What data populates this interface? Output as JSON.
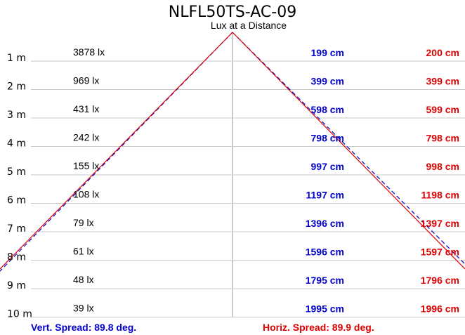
{
  "title": "NLFL50TS-AC-09",
  "subtitle": "Lux at a Distance",
  "colors": {
    "vertical": "#0000cc",
    "horizontal": "#dd0000",
    "grid": "#c8c8c8"
  },
  "rows": [
    {
      "distance": "1 m",
      "lux": "3878 lx",
      "vertical": "199 cm",
      "horizontal": "200 cm"
    },
    {
      "distance": "2 m",
      "lux": "969 lx",
      "vertical": "399 cm",
      "horizontal": "399 cm"
    },
    {
      "distance": "3 m",
      "lux": "431 lx",
      "vertical": "598 cm",
      "horizontal": "599 cm"
    },
    {
      "distance": "4 m",
      "lux": "242 lx",
      "vertical": "798 cm",
      "horizontal": "798 cm"
    },
    {
      "distance": "5 m",
      "lux": "155 lx",
      "vertical": "997 cm",
      "horizontal": "998 cm"
    },
    {
      "distance": "6 m",
      "lux": "108 lx",
      "vertical": "1197 cm",
      "horizontal": "1198 cm"
    },
    {
      "distance": "7 m",
      "lux": "79 lx",
      "vertical": "1396 cm",
      "horizontal": "1397 cm"
    },
    {
      "distance": "8 m",
      "lux": "61 lx",
      "vertical": "1596 cm",
      "horizontal": "1597 cm"
    },
    {
      "distance": "9 m",
      "lux": "48 lx",
      "vertical": "1795 cm",
      "horizontal": "1796 cm"
    },
    {
      "distance": "10 m",
      "lux": "39 lx",
      "vertical": "1995 cm",
      "horizontal": "1996 cm"
    }
  ],
  "vert_spread": "Vert. Spread: 89.8 deg.",
  "horiz_spread": "Horiz. Spread: 89.9 deg."
}
